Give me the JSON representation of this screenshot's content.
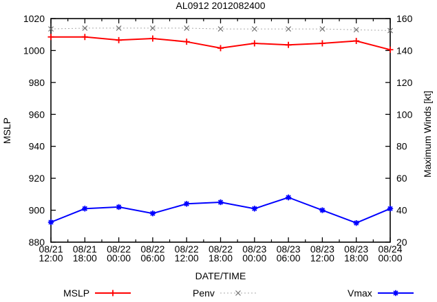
{
  "title": "AL0912 2012082400",
  "axes": {
    "x_label": "DATE/TIME",
    "y_left_label": "MSLP",
    "y_right_label": "Maximum Winds [kt]"
  },
  "legend": [
    {
      "name": "MSLP",
      "color": "#ff0000",
      "marker_color": "#ff0000",
      "line": "solid",
      "marker": "plus"
    },
    {
      "name": "Penv",
      "color": "#aaaaaa",
      "marker_color": "#707070",
      "line": "dotted",
      "marker": "cross"
    },
    {
      "name": "Vmax",
      "color": "#0000ff",
      "marker_color": "#0000ff",
      "line": "solid",
      "marker": "star"
    }
  ],
  "chart_data": {
    "type": "line",
    "title": "AL0912 2012082400",
    "xlabel": "DATE/TIME",
    "ylabel_left": "MSLP",
    "ylabel_right": "Maximum Winds [kt]",
    "grid": false,
    "legend_position": "bottom-outside",
    "categories": [
      [
        "08/21",
        "12:00"
      ],
      [
        "08/21",
        "18:00"
      ],
      [
        "08/22",
        "00:00"
      ],
      [
        "08/22",
        "06:00"
      ],
      [
        "08/22",
        "12:00"
      ],
      [
        "08/22",
        "18:00"
      ],
      [
        "08/23",
        "00:00"
      ],
      [
        "08/23",
        "06:00"
      ],
      [
        "08/23",
        "12:00"
      ],
      [
        "08/23",
        "18:00"
      ],
      [
        "08/24",
        "00:00"
      ]
    ],
    "y_left": {
      "min": 880,
      "max": 1020,
      "tick_step": 20,
      "ticks": [
        880,
        900,
        920,
        940,
        960,
        980,
        1000,
        1020
      ]
    },
    "y_right": {
      "min": 20,
      "max": 160,
      "tick_step": 20,
      "ticks": [
        20,
        40,
        60,
        80,
        100,
        120,
        140,
        160
      ]
    },
    "series": [
      {
        "name": "MSLP",
        "axis": "left",
        "color": "#ff0000",
        "marker_color": "#ff0000",
        "line": "solid",
        "marker": "plus",
        "values": [
          1008.5,
          1008.5,
          1006.5,
          1007.5,
          1005.5,
          1001.5,
          1004.5,
          1003.5,
          1004.5,
          1006,
          1000.5
        ]
      },
      {
        "name": "Penv",
        "axis": "left",
        "color": "#aaaaaa",
        "marker_color": "#707070",
        "line": "dotted",
        "marker": "cross",
        "values": [
          1013.5,
          1014,
          1014,
          1014,
          1014,
          1013.5,
          1013.5,
          1013.5,
          1013.5,
          1013,
          1012.5
        ]
      },
      {
        "name": "Vmax",
        "axis": "right",
        "color": "#0000ff",
        "marker_color": "#0000ff",
        "line": "solid",
        "marker": "star",
        "values": [
          32.5,
          41,
          42,
          38,
          44,
          45,
          41,
          48,
          40,
          32,
          41
        ]
      }
    ]
  }
}
